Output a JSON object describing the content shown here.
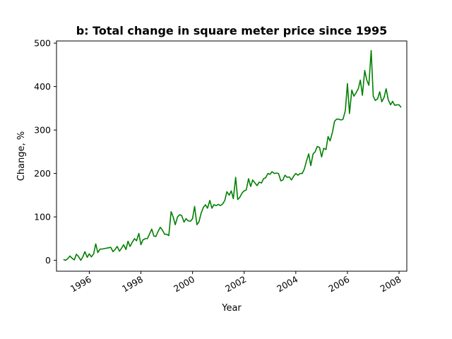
{
  "chart_data": {
    "type": "line",
    "title": "b: Total change in square meter price since 1995",
    "xlabel": "Year",
    "ylabel": "Change, %",
    "xlim": [
      1994.73,
      2008.3
    ],
    "ylim": [
      -25,
      505
    ],
    "grid": false,
    "x_tick_labels": [
      "1996",
      "1998",
      "2000",
      "2002",
      "2004",
      "2006",
      "2008"
    ],
    "y_tick_labels": [
      "0",
      "100",
      "200",
      "300",
      "400",
      "500"
    ],
    "series": [
      {
        "color": "#008000",
        "points": [
          [
            1995.0,
            2
          ],
          [
            1995.08,
            0
          ],
          [
            1995.17,
            4
          ],
          [
            1995.25,
            10
          ],
          [
            1995.33,
            5
          ],
          [
            1995.42,
            1
          ],
          [
            1995.5,
            14
          ],
          [
            1995.58,
            9
          ],
          [
            1995.67,
            0
          ],
          [
            1995.75,
            8
          ],
          [
            1995.83,
            20
          ],
          [
            1995.92,
            7
          ],
          [
            1996.0,
            15
          ],
          [
            1996.08,
            8
          ],
          [
            1996.17,
            15
          ],
          [
            1996.25,
            38
          ],
          [
            1996.33,
            18
          ],
          [
            1996.42,
            26
          ],
          [
            1996.5,
            26
          ],
          [
            1996.58,
            27
          ],
          [
            1996.67,
            28
          ],
          [
            1996.75,
            29
          ],
          [
            1996.83,
            30
          ],
          [
            1996.92,
            20
          ],
          [
            1997.0,
            25
          ],
          [
            1997.08,
            32
          ],
          [
            1997.17,
            21
          ],
          [
            1997.25,
            28
          ],
          [
            1997.33,
            36
          ],
          [
            1997.42,
            25
          ],
          [
            1997.5,
            44
          ],
          [
            1997.58,
            32
          ],
          [
            1997.67,
            42
          ],
          [
            1997.75,
            50
          ],
          [
            1997.83,
            45
          ],
          [
            1997.92,
            62
          ],
          [
            1998.0,
            36
          ],
          [
            1998.08,
            47
          ],
          [
            1998.17,
            50
          ],
          [
            1998.25,
            50
          ],
          [
            1998.33,
            60
          ],
          [
            1998.42,
            72
          ],
          [
            1998.5,
            56
          ],
          [
            1998.58,
            55
          ],
          [
            1998.67,
            67
          ],
          [
            1998.75,
            76
          ],
          [
            1998.83,
            70
          ],
          [
            1998.92,
            60
          ],
          [
            1999.0,
            60
          ],
          [
            1999.08,
            57
          ],
          [
            1999.17,
            112
          ],
          [
            1999.25,
            100
          ],
          [
            1999.33,
            82
          ],
          [
            1999.42,
            100
          ],
          [
            1999.5,
            105
          ],
          [
            1999.58,
            103
          ],
          [
            1999.67,
            88
          ],
          [
            1999.75,
            96
          ],
          [
            1999.83,
            91
          ],
          [
            1999.92,
            90
          ],
          [
            2000.0,
            96
          ],
          [
            2000.08,
            124
          ],
          [
            2000.17,
            82
          ],
          [
            2000.25,
            89
          ],
          [
            2000.33,
            108
          ],
          [
            2000.42,
            122
          ],
          [
            2000.5,
            128
          ],
          [
            2000.58,
            120
          ],
          [
            2000.67,
            138
          ],
          [
            2000.75,
            120
          ],
          [
            2000.83,
            128
          ],
          [
            2000.92,
            126
          ],
          [
            2001.0,
            129
          ],
          [
            2001.08,
            126
          ],
          [
            2001.17,
            130
          ],
          [
            2001.25,
            138
          ],
          [
            2001.33,
            158
          ],
          [
            2001.42,
            150
          ],
          [
            2001.5,
            160
          ],
          [
            2001.58,
            142
          ],
          [
            2001.67,
            191
          ],
          [
            2001.75,
            140
          ],
          [
            2001.83,
            145
          ],
          [
            2001.92,
            155
          ],
          [
            2002.0,
            160
          ],
          [
            2002.08,
            162
          ],
          [
            2002.17,
            188
          ],
          [
            2002.25,
            170
          ],
          [
            2002.33,
            185
          ],
          [
            2002.42,
            178
          ],
          [
            2002.5,
            172
          ],
          [
            2002.58,
            180
          ],
          [
            2002.67,
            178
          ],
          [
            2002.75,
            188
          ],
          [
            2002.83,
            190
          ],
          [
            2002.92,
            200
          ],
          [
            2003.0,
            198
          ],
          [
            2003.08,
            204
          ],
          [
            2003.17,
            200
          ],
          [
            2003.25,
            201
          ],
          [
            2003.33,
            200
          ],
          [
            2003.42,
            183
          ],
          [
            2003.5,
            185
          ],
          [
            2003.58,
            196
          ],
          [
            2003.67,
            191
          ],
          [
            2003.75,
            192
          ],
          [
            2003.83,
            185
          ],
          [
            2003.92,
            194
          ],
          [
            2004.0,
            200
          ],
          [
            2004.08,
            196
          ],
          [
            2004.17,
            200
          ],
          [
            2004.25,
            200
          ],
          [
            2004.33,
            210
          ],
          [
            2004.42,
            230
          ],
          [
            2004.5,
            245
          ],
          [
            2004.58,
            218
          ],
          [
            2004.67,
            245
          ],
          [
            2004.75,
            250
          ],
          [
            2004.83,
            262
          ],
          [
            2004.92,
            260
          ],
          [
            2005.0,
            238
          ],
          [
            2005.08,
            258
          ],
          [
            2005.17,
            255
          ],
          [
            2005.25,
            285
          ],
          [
            2005.33,
            275
          ],
          [
            2005.42,
            295
          ],
          [
            2005.5,
            320
          ],
          [
            2005.58,
            325
          ],
          [
            2005.67,
            325
          ],
          [
            2005.75,
            323
          ],
          [
            2005.83,
            325
          ],
          [
            2005.92,
            345
          ],
          [
            2006.0,
            407
          ],
          [
            2006.08,
            338
          ],
          [
            2006.17,
            392
          ],
          [
            2006.25,
            378
          ],
          [
            2006.33,
            385
          ],
          [
            2006.42,
            395
          ],
          [
            2006.5,
            415
          ],
          [
            2006.58,
            380
          ],
          [
            2006.67,
            437
          ],
          [
            2006.75,
            415
          ],
          [
            2006.83,
            403
          ],
          [
            2006.92,
            483
          ],
          [
            2007.0,
            378
          ],
          [
            2007.08,
            368
          ],
          [
            2007.17,
            372
          ],
          [
            2007.25,
            388
          ],
          [
            2007.33,
            365
          ],
          [
            2007.42,
            375
          ],
          [
            2007.5,
            395
          ],
          [
            2007.58,
            370
          ],
          [
            2007.67,
            358
          ],
          [
            2007.75,
            366
          ],
          [
            2007.83,
            357
          ],
          [
            2007.92,
            358
          ],
          [
            2008.0,
            358
          ],
          [
            2008.08,
            352
          ]
        ]
      }
    ]
  }
}
